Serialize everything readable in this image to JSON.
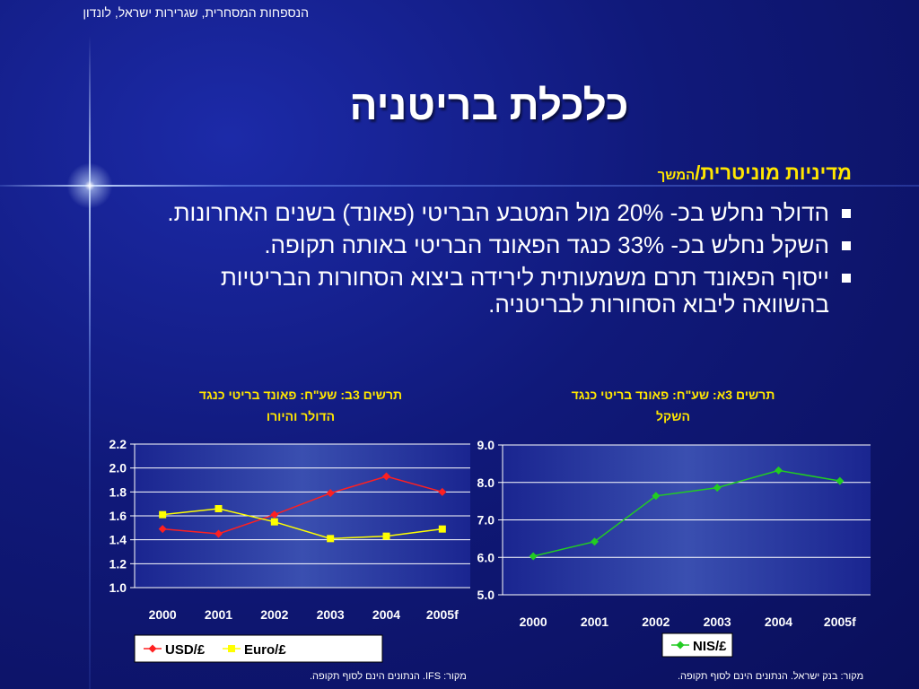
{
  "header": "הנספחות המסחרית, שגרירות ישראל, לונדון",
  "title": "כלכלת בריטניה",
  "subtitle": {
    "main": "מדיניות מוניטרית/",
    "small": "המשך"
  },
  "bullets": [
    "הדולר נחלש בכ- 20% מול המטבע הבריטי (פאונד) בשנים האחרונות.",
    "השקל נחלש בכ- 33% כנגד הפאונד הבריטי באותה תקופה.",
    "ייסוף הפאונד תרם משמעותית לירידה ביצוא הסחורות הבריטיות בהשוואה ליבוא הסחורות לבריטניה."
  ],
  "colors": {
    "accent": "#ffe600",
    "usd": "#ff2020",
    "euro": "#ffff00",
    "nis": "#22cc22"
  },
  "chart_data": [
    {
      "type": "line",
      "title_lines": [
        "תרשים 3ב: שע\"ח: פאונד בריטי כנגד",
        "הדולר והיורו"
      ],
      "categories": [
        "2000",
        "2001",
        "2002",
        "2003",
        "2004",
        "2005f"
      ],
      "series": [
        {
          "name": "USD/£",
          "color": "#ff2020",
          "marker": "diamond",
          "values": [
            1.49,
            1.45,
            1.61,
            1.79,
            1.93,
            1.8
          ]
        },
        {
          "name": "Euro/£",
          "color": "#ffff00",
          "marker": "square",
          "values": [
            1.61,
            1.66,
            1.55,
            1.41,
            1.43,
            1.49
          ]
        }
      ],
      "ylim": [
        1.0,
        2.2
      ],
      "yticks": [
        "1.0",
        "1.2",
        "1.4",
        "1.6",
        "1.8",
        "2.0",
        "2.2"
      ],
      "grid": true,
      "legend": "bottom",
      "source": "מקור: IFS. הנתונים הינם לסוף תקופה."
    },
    {
      "type": "line",
      "title_lines": [
        "תרשים 3א: שע\"ח: פאונד בריטי כנגד",
        "השקל"
      ],
      "categories": [
        "2000",
        "2001",
        "2002",
        "2003",
        "2004",
        "2005f"
      ],
      "series": [
        {
          "name": "NIS/£",
          "color": "#22cc22",
          "marker": "diamond",
          "values": [
            6.03,
            6.42,
            7.64,
            7.86,
            8.32,
            8.04
          ]
        }
      ],
      "ylim": [
        5.0,
        9.0
      ],
      "yticks": [
        "5.0",
        "6.0",
        "7.0",
        "8.0",
        "9.0"
      ],
      "grid": true,
      "legend": "bottom",
      "source": "מקור: בנק ישראל. הנתונים הינם לסוף תקופה."
    }
  ]
}
